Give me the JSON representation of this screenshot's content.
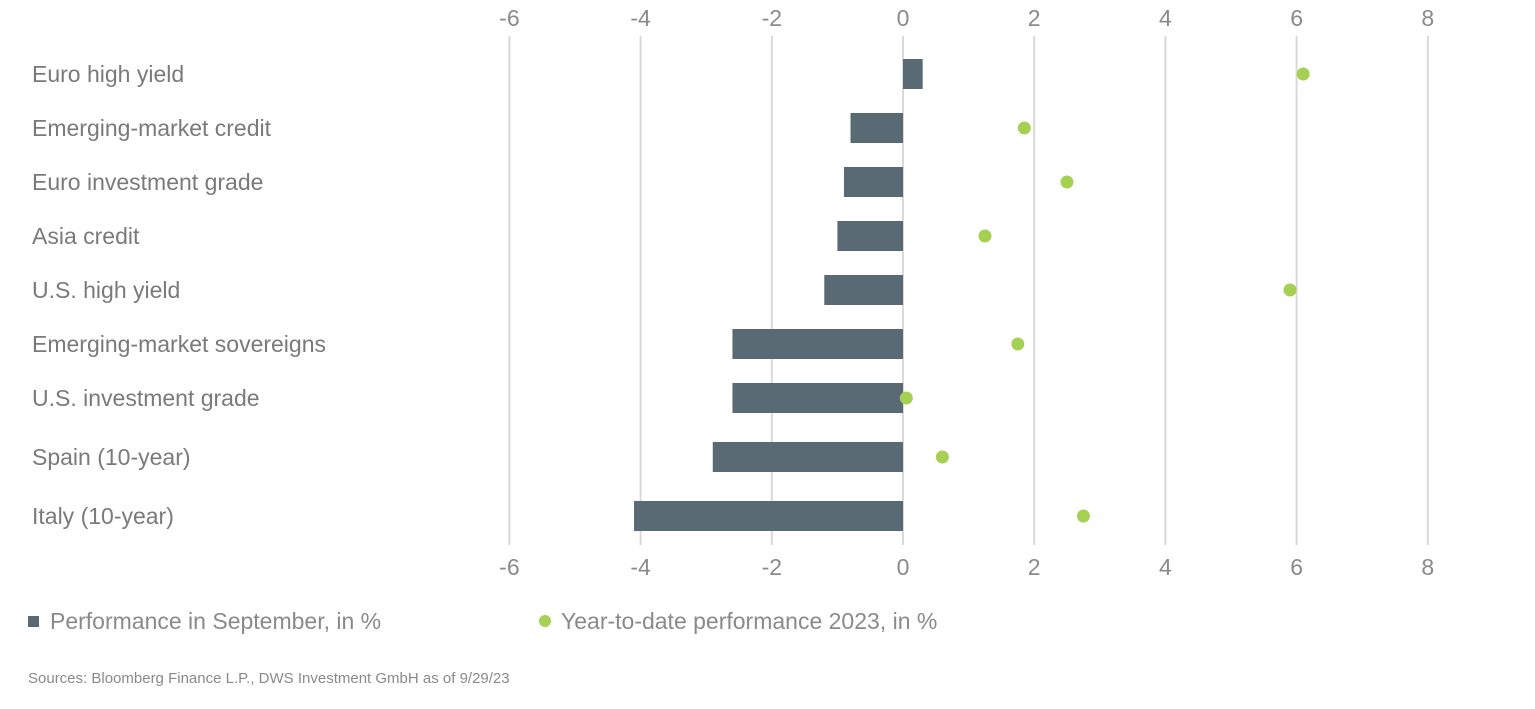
{
  "chart_data": {
    "type": "bar",
    "orientation": "horizontal",
    "categories": [
      "Euro high yield",
      "Emerging-market credit",
      "Euro investment grade",
      "Asia credit",
      "U.S. high yield",
      "Emerging-market sovereigns",
      "U.S. investment grade",
      "Spain (10-year)",
      "Italy (10-year)"
    ],
    "series": [
      {
        "name": "Performance in September, in %",
        "kind": "bar",
        "color": "#596a75",
        "values": [
          0.3,
          -0.8,
          -0.9,
          -1.0,
          -1.2,
          -2.6,
          -2.6,
          -2.9,
          -4.1
        ]
      },
      {
        "name": "Year-to-date performance 2023, in %",
        "kind": "scatter",
        "color": "#a6d052",
        "values": [
          6.1,
          1.85,
          2.5,
          1.25,
          5.9,
          1.75,
          0.05,
          0.6,
          2.75
        ]
      }
    ],
    "xlim": [
      -6,
      8
    ],
    "x_ticks": [
      "-6",
      "-4",
      "-2",
      "0",
      "2",
      "4",
      "6",
      "8"
    ],
    "x_tick_values": [
      -6,
      -4,
      -2,
      0,
      2,
      4,
      6,
      8
    ],
    "axis_labels_position": "top and bottom",
    "grid": true,
    "legend_position": "bottom-left"
  },
  "source": "Sources: Bloomberg Finance L.P., DWS Investment GmbH as of 9/29/23"
}
